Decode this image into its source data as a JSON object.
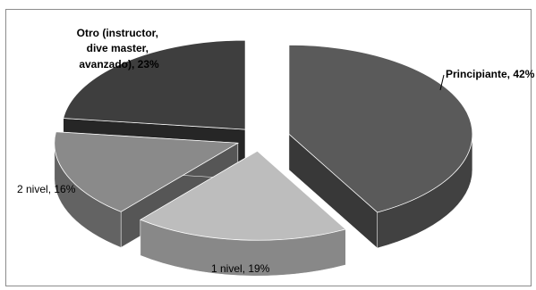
{
  "chart_data": {
    "type": "pie",
    "title": "",
    "labels": [
      "Principiante, 42%",
      "1 nivel, 19%",
      "2 nivel, 16%",
      "Otro (instructor, dive master, avanzado), 23%"
    ],
    "slices": [
      {
        "name": "Principiante",
        "value": 42,
        "label_lines": [
          "Principiante, 42%"
        ],
        "color": "#5a5a5a"
      },
      {
        "name": "1 nivel",
        "value": 19,
        "label_lines": [
          "1 nivel, 19%"
        ],
        "color": "#bdbdbd"
      },
      {
        "name": "2 nivel",
        "value": 16,
        "label_lines": [
          "2 nivel, 16%"
        ],
        "color": "#8a8a8a"
      },
      {
        "name": "Otro (instructor, dive master, avanzado)",
        "value": 23,
        "label_lines": [
          "Otro (instructor,",
          "dive master,",
          "avanzado), 23%"
        ],
        "color": "#3e3e3e"
      }
    ],
    "style": "3d-exploded",
    "legend": "none"
  }
}
